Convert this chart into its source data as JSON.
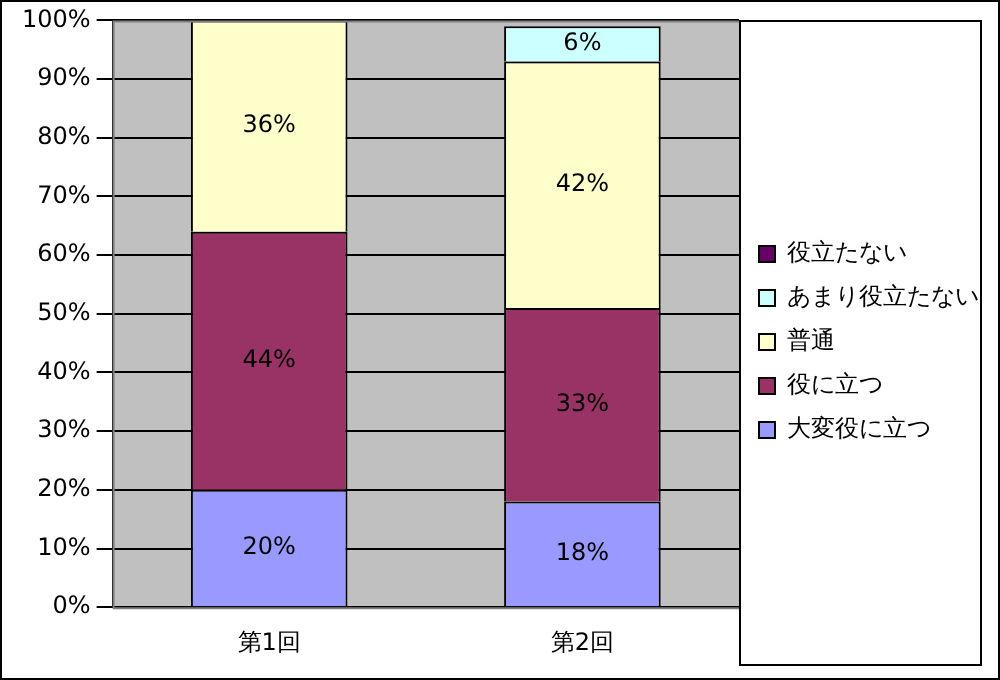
{
  "chart_data": {
    "type": "bar",
    "stacked": true,
    "categories": [
      "第1回",
      "第2回"
    ],
    "series": [
      {
        "name": "大変役に立つ",
        "color": "#9999ff",
        "values": [
          20,
          18
        ],
        "value_labels": [
          "20%",
          "18%"
        ]
      },
      {
        "name": "役に立つ",
        "color": "#993366",
        "values": [
          44,
          33
        ],
        "value_labels": [
          "44%",
          "33%"
        ]
      },
      {
        "name": "普通",
        "color": "#ffffcc",
        "values": [
          36,
          42
        ],
        "value_labels": [
          "36%",
          "42%"
        ]
      },
      {
        "name": "あまり役立たない",
        "color": "#ccffff",
        "values": [
          0,
          6
        ],
        "value_labels": [
          null,
          "6%"
        ]
      },
      {
        "name": "役立たない",
        "color": "#660066",
        "values": [
          0,
          0
        ],
        "value_labels": [
          null,
          null
        ]
      }
    ],
    "ylim": [
      0,
      100
    ],
    "yticks": [
      {
        "value": 0,
        "label": "0%"
      },
      {
        "value": 10,
        "label": "10%"
      },
      {
        "value": 20,
        "label": "20%"
      },
      {
        "value": 30,
        "label": "30%"
      },
      {
        "value": 40,
        "label": "40%"
      },
      {
        "value": 50,
        "label": "50%"
      },
      {
        "value": 60,
        "label": "60%"
      },
      {
        "value": 70,
        "label": "70%"
      },
      {
        "value": 80,
        "label": "80%"
      },
      {
        "value": 90,
        "label": "90%"
      },
      {
        "value": 100,
        "label": "100%"
      }
    ],
    "grid": "y",
    "legend": "right"
  }
}
